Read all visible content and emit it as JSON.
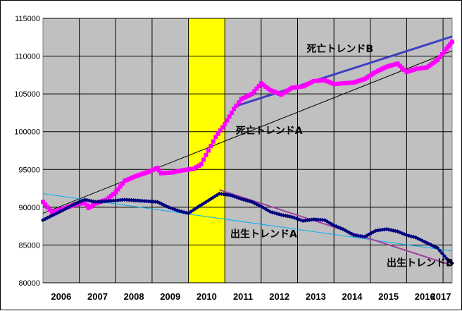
{
  "chart_data": {
    "type": "line",
    "title": "",
    "xlabel": "",
    "ylabel": "",
    "xlim": [
      2005.75,
      2017.0
    ],
    "ylim": [
      80000,
      115000
    ],
    "yticks": [
      80000,
      85000,
      90000,
      95000,
      100000,
      105000,
      110000,
      115000
    ],
    "xticks": [
      "2006",
      "2007",
      "2008",
      "2009",
      "2010",
      "2011",
      "2012",
      "2013",
      "2014",
      "2015",
      "2016",
      "2017"
    ],
    "grid": true,
    "plot_background": "#c0c0c0",
    "highlight_band": {
      "from": 2009.75,
      "to": 2010.75,
      "color": "#ffff00"
    },
    "series": [
      {
        "name": "",
        "color": "#ff00ff",
        "marker": "square",
        "points": [
          [
            2005.75,
            90700
          ],
          [
            2006.0,
            89300
          ],
          [
            2006.3,
            89800
          ],
          [
            2006.6,
            90300
          ],
          [
            2006.9,
            90600
          ],
          [
            2007.0,
            89900
          ],
          [
            2007.2,
            90500
          ],
          [
            2007.5,
            91000
          ],
          [
            2007.75,
            92000
          ],
          [
            2008.0,
            93500
          ],
          [
            2008.3,
            94100
          ],
          [
            2008.6,
            94600
          ],
          [
            2008.9,
            95200
          ],
          [
            2009.0,
            94500
          ],
          [
            2009.3,
            94600
          ],
          [
            2009.6,
            94900
          ],
          [
            2009.9,
            95100
          ],
          [
            2010.1,
            95700
          ],
          [
            2010.3,
            97500
          ],
          [
            2010.5,
            99300
          ],
          [
            2010.75,
            101000
          ],
          [
            2011.0,
            103000
          ],
          [
            2011.2,
            104300
          ],
          [
            2011.5,
            105000
          ],
          [
            2011.75,
            106400
          ],
          [
            2012.0,
            105500
          ],
          [
            2012.3,
            104900
          ],
          [
            2012.6,
            105800
          ],
          [
            2012.9,
            106000
          ],
          [
            2013.2,
            106700
          ],
          [
            2013.5,
            106800
          ],
          [
            2013.75,
            106300
          ],
          [
            2014.0,
            106400
          ],
          [
            2014.3,
            106500
          ],
          [
            2014.6,
            107000
          ],
          [
            2014.9,
            107900
          ],
          [
            2015.2,
            108600
          ],
          [
            2015.5,
            109000
          ],
          [
            2015.75,
            107900
          ],
          [
            2016.0,
            108300
          ],
          [
            2016.3,
            108500
          ],
          [
            2016.6,
            109500
          ],
          [
            2016.85,
            111000
          ],
          [
            2017.0,
            111900
          ]
        ]
      },
      {
        "name": "",
        "color": "#000080",
        "marker": "diamond",
        "points": [
          [
            2005.75,
            88300
          ],
          [
            2006.0,
            88900
          ],
          [
            2006.3,
            89600
          ],
          [
            2006.6,
            90400
          ],
          [
            2006.9,
            91000
          ],
          [
            2007.2,
            90700
          ],
          [
            2007.5,
            90800
          ],
          [
            2007.75,
            90900
          ],
          [
            2008.0,
            91000
          ],
          [
            2008.3,
            90900
          ],
          [
            2008.6,
            90800
          ],
          [
            2008.9,
            90700
          ],
          [
            2009.2,
            90000
          ],
          [
            2009.5,
            89500
          ],
          [
            2009.75,
            89200
          ],
          [
            2010.0,
            90000
          ],
          [
            2010.3,
            90900
          ],
          [
            2010.6,
            91800
          ],
          [
            2010.9,
            91600
          ],
          [
            2011.2,
            91100
          ],
          [
            2011.5,
            90700
          ],
          [
            2011.75,
            90100
          ],
          [
            2012.0,
            89400
          ],
          [
            2012.3,
            89000
          ],
          [
            2012.6,
            88700
          ],
          [
            2012.9,
            88200
          ],
          [
            2013.2,
            88400
          ],
          [
            2013.5,
            88300
          ],
          [
            2013.75,
            87600
          ],
          [
            2014.0,
            87100
          ],
          [
            2014.3,
            86300
          ],
          [
            2014.6,
            86100
          ],
          [
            2014.9,
            86900
          ],
          [
            2015.2,
            87100
          ],
          [
            2015.5,
            86800
          ],
          [
            2015.75,
            86300
          ],
          [
            2016.0,
            86000
          ],
          [
            2016.3,
            85300
          ],
          [
            2016.6,
            84600
          ],
          [
            2016.85,
            83200
          ],
          [
            2017.0,
            82600
          ]
        ]
      }
    ],
    "trend_lines": [
      {
        "color": "#000000",
        "width": 1,
        "from": [
          2005.75,
          89200
        ],
        "to": [
          2017.0,
          110700
        ]
      },
      {
        "color": "#4040c0",
        "width": 3,
        "from": [
          2011.0,
          103300
        ],
        "to": [
          2017.0,
          112600
        ]
      },
      {
        "color": "#00b0f0",
        "width": 1,
        "from": [
          2005.75,
          91800
        ],
        "to": [
          2017.0,
          84200
        ]
      },
      {
        "color": "#a040a0",
        "width": 2,
        "from": [
          2010.6,
          92300
        ],
        "to": [
          2017.0,
          82300
        ]
      }
    ],
    "annotations": [
      {
        "text": "死亡トレンドB",
        "x": 2013.0,
        "y": 110500
      },
      {
        "text": "死亡トレンドA",
        "x": 2011.05,
        "y": 99700
      },
      {
        "text": "出生トレンドA",
        "x": 2010.9,
        "y": 86000
      },
      {
        "text": "出生トレンドB",
        "x": 2015.2,
        "y": 82200
      }
    ]
  }
}
